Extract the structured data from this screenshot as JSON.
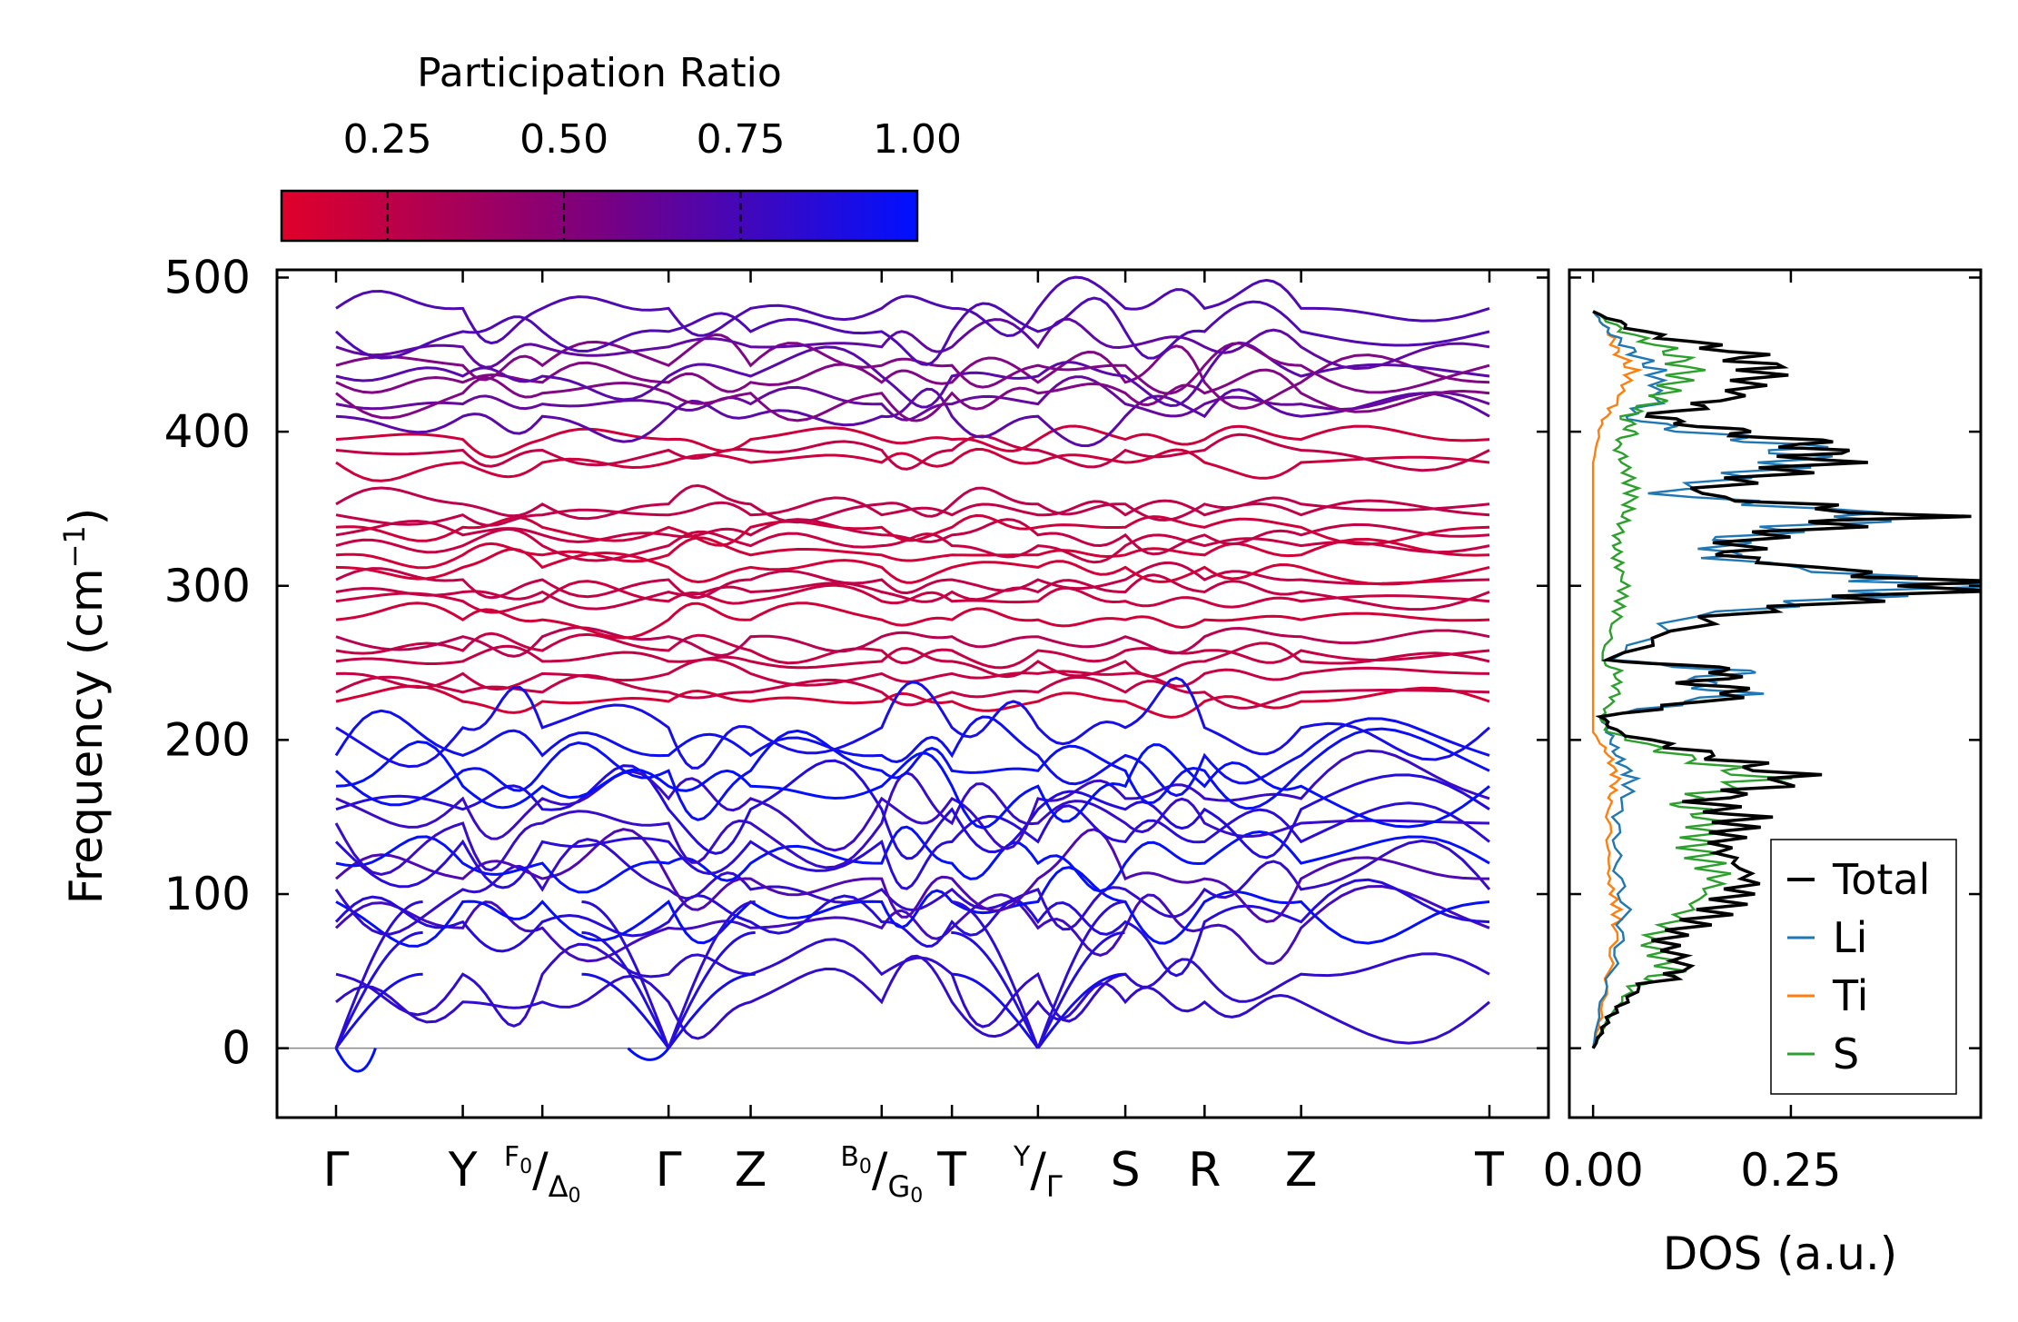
{
  "colors": {
    "red": "#e0002a",
    "mid": "#7a0080",
    "blue": "#0010ff",
    "total": "#000000",
    "li": "#1f77b4",
    "ti": "#ff7f0e",
    "s": "#2ca02c",
    "zero_line": "#888888"
  },
  "colorbar": {
    "title": "Participation Ratio",
    "range": [
      0.1,
      1.0
    ],
    "ticks": [
      0.25,
      0.5,
      0.75,
      1.0
    ],
    "tick_labels": [
      "0.25",
      "0.50",
      "0.75",
      "1.00"
    ]
  },
  "chart_data": [
    {
      "type": "line",
      "name": "phonon-band-structure",
      "ylabel": "Frequency (cm",
      "ylabel_sup": "−1",
      "ylabel_end": ")",
      "ylim": [
        -45,
        505
      ],
      "yticks": [
        0,
        100,
        200,
        300,
        400,
        500
      ],
      "ytick_labels": [
        "0",
        "100",
        "200",
        "300",
        "400",
        "500"
      ],
      "kpath_segment1": [
        {
          "label": "Γ",
          "sub": "",
          "pos": 0.0
        },
        {
          "label": "Y",
          "sub": "",
          "pos": 0.16
        },
        {
          "label": "F₀/Δ₀",
          "sub": "",
          "pos": 0.26
        },
        {
          "label": "Γ",
          "sub": "",
          "pos": 0.42
        },
        {
          "label": "Z",
          "sub": "",
          "pos": 0.52
        },
        {
          "label": "B₀/G₀",
          "sub": "",
          "pos": 0.68
        },
        {
          "label": "T",
          "sub": "",
          "pos": 0.78
        },
        {
          "label": "Y/Γ",
          "sub": "",
          "pos": 0.88
        }
      ],
      "kpath_segment2": [
        {
          "label": "S",
          "pos": 0.0
        },
        {
          "label": "R",
          "pos": 0.0
        },
        {
          "label": "Z",
          "pos": 0.0
        },
        {
          "label": "T",
          "pos": 0.0
        }
      ],
      "x_tick_labels": [
        {
          "main": "Γ"
        },
        {
          "main": "Y"
        },
        {
          "pre": "F",
          "pre_sub": "0",
          "slash": "/",
          "main": "Δ",
          "main_sub": "0"
        },
        {
          "main": "Γ"
        },
        {
          "main": "Z"
        },
        {
          "pre": "B",
          "pre_sub": "0",
          "slash": "/",
          "main": "G",
          "main_sub": "0"
        },
        {
          "main": "T"
        },
        {
          "pre": "Y",
          "slash": "/",
          "main": "Γ"
        },
        {
          "main": "S"
        },
        {
          "main": "R"
        },
        {
          "main": "Z"
        },
        {
          "main": "T"
        }
      ],
      "x_positions": [
        0,
        0.1606,
        0.2614,
        0.4213,
        0.5253,
        0.6913,
        0.7803,
        0.8893,
        1.0,
        1.1004,
        1.2227,
        1.4613
      ],
      "segments": [
        {
          "x": [
            0.0,
            0.1606
          ]
        },
        {
          "x": [
            0.1606,
            0.2614
          ]
        },
        {
          "x": [
            0.2614,
            0.4213
          ]
        },
        {
          "x": [
            0.4213,
            0.5253
          ]
        },
        {
          "x": [
            0.5253,
            0.6913
          ]
        },
        {
          "x": [
            0.6913,
            0.7803
          ]
        },
        {
          "x": [
            0.7803,
            0.8893
          ]
        },
        {
          "x": [
            0.8893,
            1.0
          ]
        },
        {
          "x": [
            1.0,
            1.1004
          ]
        },
        {
          "x": [
            1.1004,
            1.2227
          ]
        },
        {
          "x": [
            1.2227,
            1.4613
          ]
        }
      ],
      "optic_groups": {
        "high_red": [
          225,
          231,
          243,
          251,
          258,
          267,
          278,
          290,
          296,
          304,
          312,
          320,
          326,
          333,
          338,
          346,
          353,
          380,
          388,
          395
        ],
        "blue_low": [
          30,
          48,
          78,
          82,
          95,
          103,
          110,
          120,
          134,
          146,
          155,
          162,
          170,
          180,
          190,
          208
        ],
        "upper_mixed": [
          410,
          418,
          425,
          432,
          436,
          443,
          455,
          465,
          480
        ]
      }
    },
    {
      "type": "line",
      "name": "density-of-states",
      "xlabel": "DOS (a.u.)",
      "xlim": [
        -0.03,
        0.49
      ],
      "xticks": [
        0.0,
        0.25
      ],
      "xtick_labels": [
        "0.00",
        "0.25"
      ],
      "ylim": [
        -45,
        505
      ],
      "legend_position": "lower-right",
      "series": [
        {
          "name": "Total",
          "color": "#000000"
        },
        {
          "name": "Li",
          "color": "#1f77b4"
        },
        {
          "name": "Ti",
          "color": "#ff7f0e"
        },
        {
          "name": "S",
          "color": "#2ca02c"
        }
      ],
      "peaks": {
        "Total": [
          [
            0,
            0
          ],
          [
            20,
            0.02
          ],
          [
            40,
            0.06
          ],
          [
            50,
            0.12
          ],
          [
            70,
            0.09
          ],
          [
            90,
            0.16
          ],
          [
            110,
            0.2
          ],
          [
            130,
            0.16
          ],
          [
            150,
            0.19
          ],
          [
            160,
            0.14
          ],
          [
            175,
            0.26
          ],
          [
            190,
            0.15
          ],
          [
            205,
            0.03
          ],
          [
            215,
            0.01
          ],
          [
            230,
            0.2
          ],
          [
            237,
            0.13
          ],
          [
            245,
            0.19
          ],
          [
            252,
            0.02
          ],
          [
            280,
            0.15
          ],
          [
            300,
            0.48
          ],
          [
            318,
            0.18
          ],
          [
            330,
            0.19
          ],
          [
            340,
            0.31
          ],
          [
            345,
            0.4
          ],
          [
            360,
            0.12
          ],
          [
            380,
            0.29
          ],
          [
            392,
            0.28
          ],
          [
            400,
            0.18
          ],
          [
            410,
            0.07
          ],
          [
            420,
            0.17
          ],
          [
            440,
            0.22
          ],
          [
            452,
            0.18
          ],
          [
            465,
            0.06
          ],
          [
            478,
            0.0
          ]
        ],
        "Li": [
          [
            0,
            0
          ],
          [
            30,
            0.01
          ],
          [
            60,
            0.03
          ],
          [
            90,
            0.04
          ],
          [
            120,
            0.03
          ],
          [
            150,
            0.03
          ],
          [
            175,
            0.05
          ],
          [
            190,
            0.03
          ],
          [
            205,
            0.02
          ],
          [
            215,
            0.01
          ],
          [
            230,
            0.18
          ],
          [
            237,
            0.13
          ],
          [
            245,
            0.18
          ],
          [
            252,
            0.02
          ],
          [
            280,
            0.12
          ],
          [
            300,
            0.45
          ],
          [
            318,
            0.16
          ],
          [
            330,
            0.17
          ],
          [
            340,
            0.28
          ],
          [
            345,
            0.38
          ],
          [
            360,
            0.08
          ],
          [
            380,
            0.26
          ],
          [
            392,
            0.25
          ],
          [
            400,
            0.12
          ],
          [
            410,
            0.04
          ],
          [
            420,
            0.08
          ],
          [
            440,
            0.08
          ],
          [
            452,
            0.05
          ],
          [
            465,
            0.02
          ],
          [
            478,
            0.0
          ]
        ],
        "Ti": [
          [
            0,
            0
          ],
          [
            20,
            0.01
          ],
          [
            50,
            0.02
          ],
          [
            80,
            0.03
          ],
          [
            90,
            0.03
          ],
          [
            110,
            0.02
          ],
          [
            130,
            0.02
          ],
          [
            160,
            0.02
          ],
          [
            175,
            0.03
          ],
          [
            190,
            0.02
          ],
          [
            205,
            0.0
          ],
          [
            230,
            0.0
          ],
          [
            300,
            0.0
          ],
          [
            380,
            0.0
          ],
          [
            405,
            0.01
          ],
          [
            420,
            0.03
          ],
          [
            440,
            0.05
          ],
          [
            452,
            0.03
          ],
          [
            465,
            0.02
          ],
          [
            478,
            0.0
          ]
        ],
        "S": [
          [
            0,
            0
          ],
          [
            20,
            0.02
          ],
          [
            40,
            0.05
          ],
          [
            50,
            0.1
          ],
          [
            70,
            0.07
          ],
          [
            90,
            0.12
          ],
          [
            110,
            0.16
          ],
          [
            130,
            0.13
          ],
          [
            150,
            0.15
          ],
          [
            160,
            0.11
          ],
          [
            175,
            0.21
          ],
          [
            190,
            0.11
          ],
          [
            205,
            0.02
          ],
          [
            215,
            0.01
          ],
          [
            230,
            0.03
          ],
          [
            245,
            0.03
          ],
          [
            252,
            0.01
          ],
          [
            280,
            0.03
          ],
          [
            300,
            0.04
          ],
          [
            318,
            0.03
          ],
          [
            330,
            0.03
          ],
          [
            345,
            0.04
          ],
          [
            360,
            0.05
          ],
          [
            380,
            0.04
          ],
          [
            392,
            0.03
          ],
          [
            400,
            0.05
          ],
          [
            410,
            0.04
          ],
          [
            420,
            0.08
          ],
          [
            440,
            0.12
          ],
          [
            452,
            0.1
          ],
          [
            465,
            0.04
          ],
          [
            478,
            0.0
          ]
        ]
      }
    }
  ]
}
